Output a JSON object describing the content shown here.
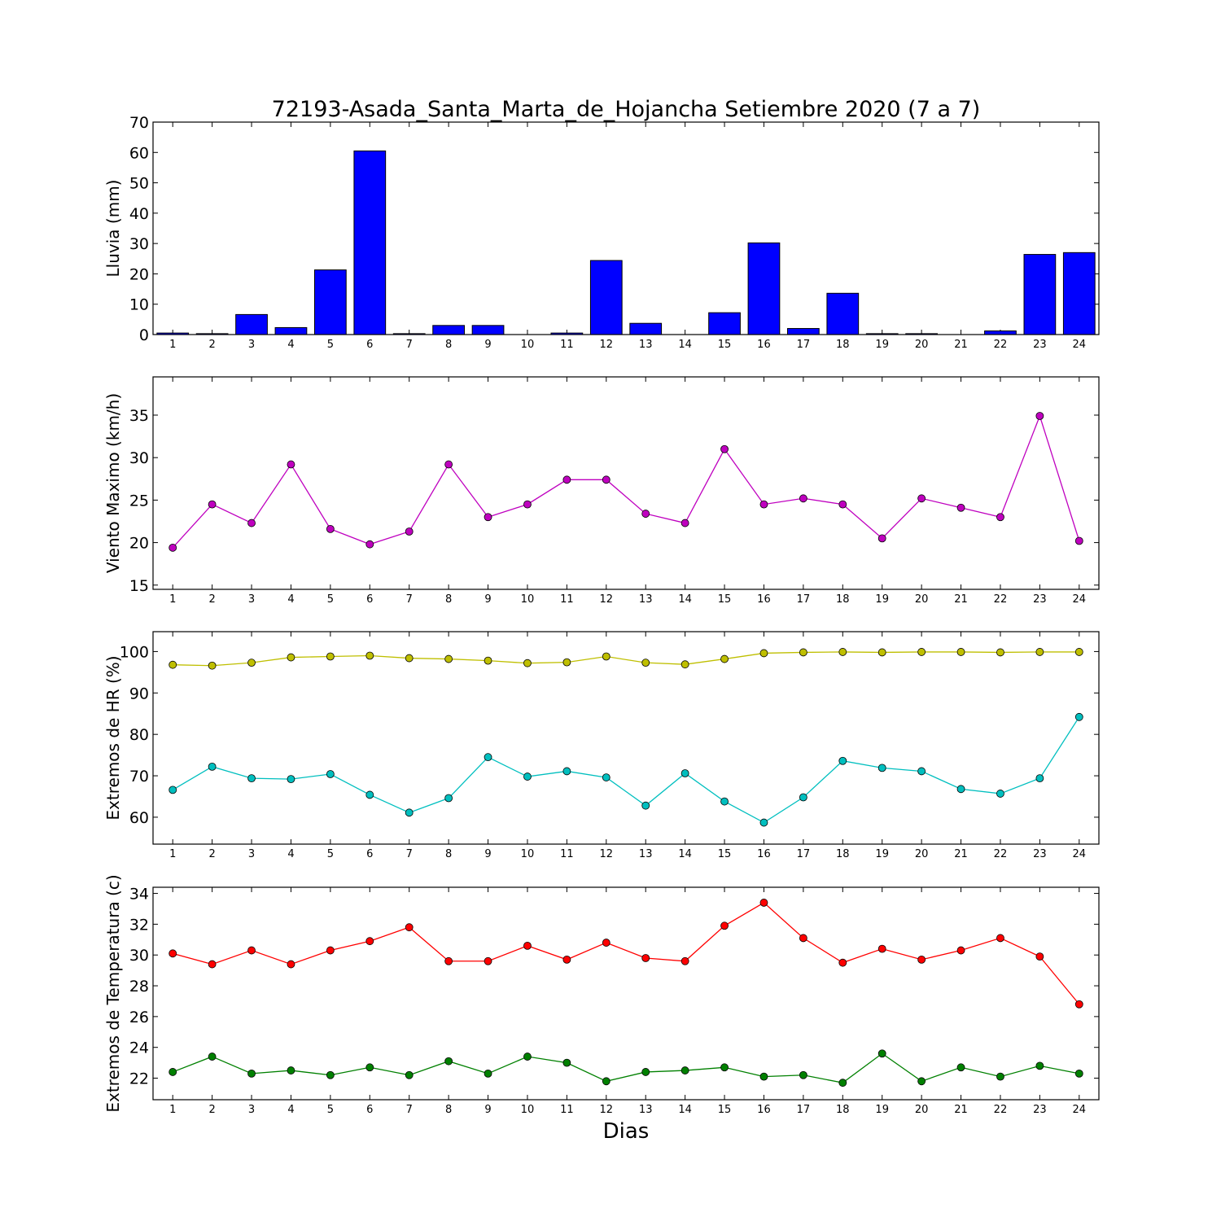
{
  "figure": {
    "title": "72193-Asada_Santa_Marta_de_Hojancha Setiembre 2020  (7 a 7)",
    "xlabel": "Dias"
  },
  "chart_data": [
    {
      "type": "bar",
      "ylabel": "Lluvia (mm)",
      "ylim": [
        0,
        70
      ],
      "yticks": [
        0,
        10,
        20,
        30,
        40,
        50,
        60,
        70
      ],
      "categories": [
        "1",
        "2",
        "3",
        "4",
        "5",
        "6",
        "7",
        "8",
        "9",
        "10",
        "11",
        "12",
        "13",
        "14",
        "15",
        "16",
        "17",
        "18",
        "19",
        "20",
        "21",
        "22",
        "23",
        "24"
      ],
      "color": "#0000ff",
      "values": [
        0.5,
        0.3,
        6.6,
        2.3,
        21.3,
        60.5,
        0.3,
        3.0,
        3.0,
        0.0,
        0.5,
        24.4,
        3.7,
        0.0,
        7.2,
        30.2,
        2.0,
        13.6,
        0.3,
        0.3,
        0.0,
        1.2,
        26.4,
        27.0
      ]
    },
    {
      "type": "line",
      "ylabel": "Viento Maximo (km/h)",
      "ylim": [
        14.5,
        39.5
      ],
      "yticks": [
        15,
        20,
        25,
        30,
        35
      ],
      "x": [
        1,
        2,
        3,
        4,
        5,
        6,
        7,
        8,
        9,
        10,
        11,
        12,
        13,
        14,
        15,
        16,
        17,
        18,
        19,
        20,
        21,
        22,
        23,
        24
      ],
      "series": [
        {
          "color": "#bf00bf",
          "values": [
            19.4,
            24.5,
            22.3,
            29.2,
            21.6,
            19.8,
            21.3,
            29.2,
            23.0,
            24.5,
            27.4,
            27.4,
            23.4,
            22.3,
            31.0,
            24.5,
            25.2,
            24.5,
            20.5,
            25.2,
            24.1,
            23.0,
            34.9,
            20.2
          ]
        }
      ]
    },
    {
      "type": "line",
      "ylabel": "Extremos de HR (%)",
      "ylim": [
        53.5,
        104.8
      ],
      "yticks": [
        60,
        70,
        80,
        90,
        100
      ],
      "x": [
        1,
        2,
        3,
        4,
        5,
        6,
        7,
        8,
        9,
        10,
        11,
        12,
        13,
        14,
        15,
        16,
        17,
        18,
        19,
        20,
        21,
        22,
        23,
        24
      ],
      "series": [
        {
          "color": "#bfbf00",
          "values": [
            96.8,
            96.6,
            97.3,
            98.6,
            98.8,
            99.0,
            98.4,
            98.2,
            97.8,
            97.2,
            97.4,
            98.8,
            97.3,
            96.9,
            98.2,
            99.6,
            99.8,
            99.9,
            99.8,
            99.9,
            99.9,
            99.8,
            99.9,
            99.9
          ]
        },
        {
          "color": "#00bfbf",
          "values": [
            66.6,
            72.2,
            69.4,
            69.2,
            70.4,
            65.4,
            61.1,
            64.6,
            74.5,
            69.8,
            71.1,
            69.6,
            62.8,
            70.6,
            63.8,
            58.7,
            64.8,
            73.6,
            71.9,
            71.1,
            66.8,
            65.7,
            69.4,
            84.2
          ]
        }
      ]
    },
    {
      "type": "line",
      "ylabel": "Extremos de Temperatura (c)",
      "ylim": [
        20.6,
        34.4
      ],
      "yticks": [
        22,
        24,
        26,
        28,
        30,
        32,
        34
      ],
      "x": [
        1,
        2,
        3,
        4,
        5,
        6,
        7,
        8,
        9,
        10,
        11,
        12,
        13,
        14,
        15,
        16,
        17,
        18,
        19,
        20,
        21,
        22,
        23,
        24
      ],
      "series": [
        {
          "color": "#ff0000",
          "values": [
            30.1,
            29.4,
            30.3,
            29.4,
            30.3,
            30.9,
            31.8,
            29.6,
            29.6,
            30.6,
            29.7,
            30.8,
            29.8,
            29.6,
            31.9,
            33.4,
            31.1,
            29.5,
            30.4,
            29.7,
            30.3,
            31.1,
            29.9,
            26.8
          ]
        },
        {
          "color": "#008000",
          "values": [
            22.4,
            23.4,
            22.3,
            22.5,
            22.2,
            22.7,
            22.2,
            23.1,
            22.3,
            23.4,
            23.0,
            21.8,
            22.4,
            22.5,
            22.7,
            22.1,
            22.2,
            21.7,
            23.6,
            21.8,
            22.7,
            22.1,
            22.8,
            22.3
          ]
        }
      ]
    }
  ]
}
